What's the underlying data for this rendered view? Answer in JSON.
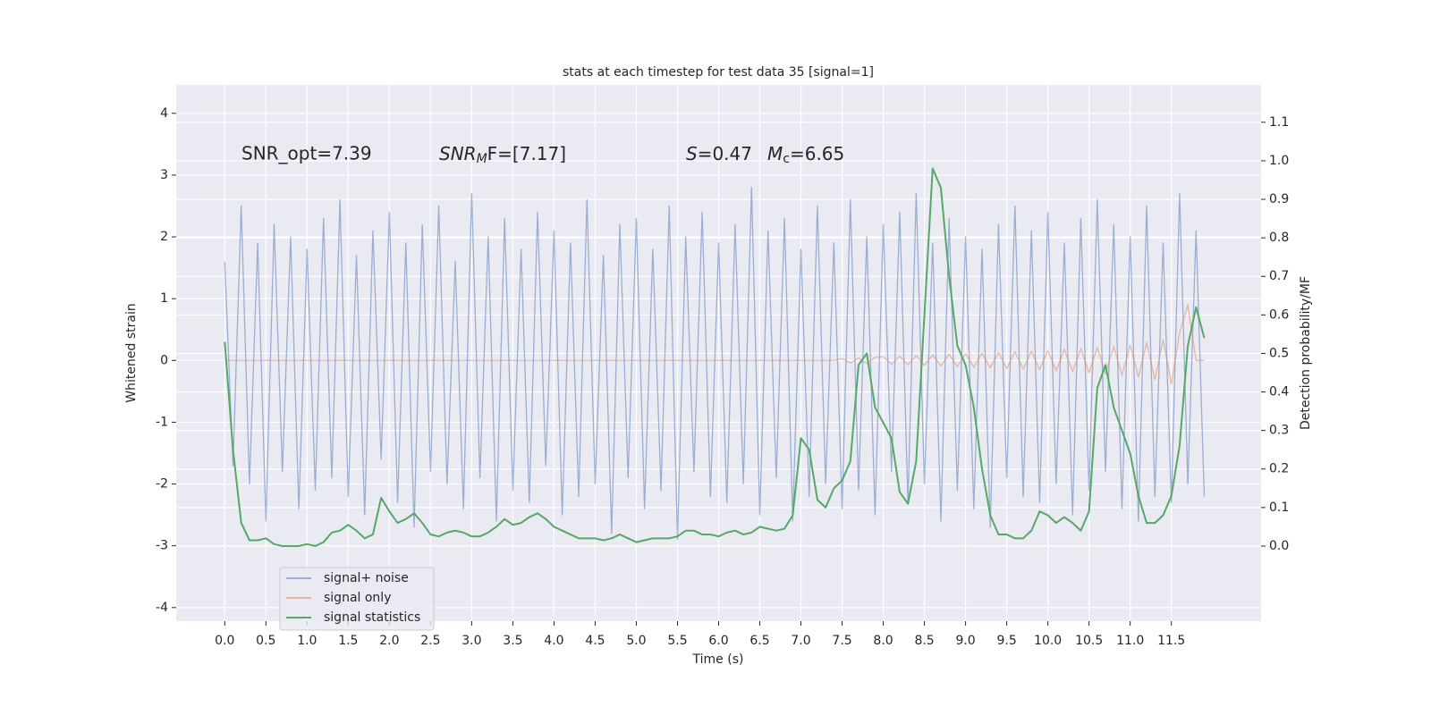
{
  "chart_data": {
    "type": "line",
    "title": "stats at each timestep for test data 35 [signal=1]",
    "xlabel": "Time (s)",
    "ylabel": "Whitened strain",
    "y2label": "Detection probability/MF",
    "annotations": [
      "SNR_opt=7.39",
      [
        "SNR",
        "M",
        "F=[7.17]"
      ],
      [
        "S",
        "=0.47"
      ],
      [
        "M",
        "c",
        "=6.65"
      ]
    ],
    "legend": "lower left",
    "grid": true,
    "xlim": [
      -0.59,
      12.59
    ],
    "ylim": [
      -4.22,
      4.46
    ],
    "y2lim": [
      -0.195,
      1.197
    ],
    "xticks": [
      {
        "value": 0,
        "label": "0.0"
      },
      0.5,
      {
        "value": 1,
        "label": "1.0"
      },
      1.5,
      {
        "value": 2,
        "label": "2.0"
      },
      2.5,
      {
        "value": 3,
        "label": "3.0"
      },
      3.5,
      {
        "value": 4,
        "label": "4.0"
      },
      4.5,
      {
        "value": 5,
        "label": "5.0"
      },
      5.5,
      {
        "value": 6,
        "label": "6.0"
      },
      6.5,
      {
        "value": 7,
        "label": "7.0"
      },
      7.5,
      {
        "value": 8,
        "label": "8.0"
      },
      8.5,
      {
        "value": 9,
        "label": "9.0"
      },
      9.5,
      {
        "value": 10,
        "label": "10.0"
      },
      10.5,
      {
        "value": 11,
        "label": "11.0"
      },
      11.5
    ],
    "yticks": [
      -4,
      -3,
      -2,
      -1,
      0,
      1,
      2,
      3,
      4
    ],
    "y2ticks": [
      {
        "value": 0,
        "label": "0.0"
      },
      0.1,
      0.2,
      0.3,
      0.4,
      0.5,
      0.6,
      0.7,
      0.8,
      0.9,
      {
        "value": 1,
        "label": "1.0"
      },
      1.1
    ],
    "x": [
      0,
      0.1,
      0.2,
      0.3,
      0.4,
      0.5,
      0.6,
      0.7,
      0.8,
      0.9,
      1,
      1.1,
      1.2,
      1.3,
      1.4,
      1.5,
      1.6,
      1.7,
      1.8,
      1.9,
      2,
      2.1,
      2.2,
      2.3,
      2.4,
      2.5,
      2.6,
      2.7,
      2.8,
      2.9,
      3,
      3.1,
      3.2,
      3.3,
      3.4,
      3.5,
      3.6,
      3.7,
      3.8,
      3.9,
      4,
      4.1,
      4.2,
      4.3,
      4.4,
      4.5,
      4.6,
      4.7,
      4.8,
      4.9,
      5,
      5.1,
      5.2,
      5.3,
      5.4,
      5.5,
      5.6,
      5.7,
      5.8,
      5.9,
      6,
      6.1,
      6.2,
      6.3,
      6.4,
      6.5,
      6.6,
      6.7,
      6.8,
      6.9,
      7,
      7.1,
      7.2,
      7.3,
      7.4,
      7.5,
      7.6,
      7.7,
      7.8,
      7.9,
      8,
      8.1,
      8.2,
      8.3,
      8.4,
      8.5,
      8.6,
      8.7,
      8.8,
      8.9,
      9,
      9.1,
      9.2,
      9.3,
      9.4,
      9.5,
      9.6,
      9.7,
      9.8,
      9.9,
      10,
      10.1,
      10.2,
      10.3,
      10.4,
      10.5,
      10.6,
      10.7,
      10.8,
      10.9,
      11,
      11.1,
      11.2,
      11.3,
      11.4,
      11.5,
      11.6,
      11.7,
      11.8,
      11.9
    ],
    "series": [
      {
        "name": "signal+ noise",
        "color": "#4c72b0",
        "alpha": 0.5,
        "values": [
          1.6,
          -1.7,
          2.5,
          -2.0,
          1.9,
          -2.6,
          2.2,
          -1.8,
          2.0,
          -2.4,
          1.8,
          -2.1,
          2.3,
          -1.9,
          2.6,
          -2.2,
          1.7,
          -2.5,
          2.1,
          -1.6,
          2.4,
          -2.3,
          1.9,
          -2.7,
          2.2,
          -1.8,
          2.5,
          -2.0,
          1.6,
          -2.4,
          2.7,
          -1.9,
          2.0,
          -2.6,
          2.3,
          -2.1,
          1.8,
          -2.3,
          2.4,
          -1.7,
          2.1,
          -2.5,
          1.9,
          -2.2,
          2.6,
          -2.0,
          1.7,
          -2.8,
          2.2,
          -1.9,
          2.3,
          -2.4,
          1.8,
          -2.1,
          2.5,
          -2.9,
          2.0,
          -1.8,
          2.4,
          -2.2,
          1.9,
          -2.3,
          2.2,
          -2.0,
          2.8,
          -2.5,
          2.1,
          -1.9,
          2.3,
          -2.6,
          1.8,
          -2.2,
          2.5,
          -2.0,
          1.9,
          -2.4,
          2.6,
          -2.1,
          2.0,
          -2.5,
          2.2,
          -1.8,
          2.4,
          -2.3,
          2.7,
          -2.0,
          1.9,
          -2.6,
          2.3,
          -2.1,
          2.0,
          -2.4,
          1.8,
          -2.7,
          2.2,
          -1.9,
          2.5,
          -2.2,
          2.1,
          -2.3,
          2.4,
          -2.0,
          1.9,
          -2.5,
          2.3,
          -2.1,
          2.6,
          -1.8,
          2.2,
          -2.4,
          2.0,
          -2.6,
          2.5,
          -2.2,
          1.9,
          -2.3,
          2.7,
          -2.0,
          2.1,
          -2.2
        ]
      },
      {
        "name": "signal only",
        "color": "#dd8452",
        "alpha": 0.5,
        "values": [
          0,
          0,
          0,
          0,
          0,
          0,
          0,
          0,
          0,
          0,
          0,
          0,
          0,
          0,
          0,
          0,
          0,
          0,
          0,
          0,
          0,
          0,
          0,
          0,
          0,
          0,
          0,
          0,
          0,
          0,
          0,
          0,
          0,
          0,
          0,
          0,
          0,
          0,
          0,
          0,
          0,
          0,
          0,
          0,
          0,
          0,
          0,
          0,
          0,
          0,
          0,
          0,
          0,
          0,
          0,
          0,
          0,
          0,
          0,
          0,
          0,
          0,
          0,
          0,
          0,
          0,
          0,
          0,
          0,
          0,
          0,
          0,
          0,
          0,
          0,
          0.03,
          -0.04,
          0.04,
          -0.05,
          0.05,
          0.06,
          -0.06,
          0.07,
          -0.07,
          0.08,
          -0.08,
          0.09,
          -0.09,
          0.1,
          -0.1,
          0.11,
          -0.11,
          0.12,
          -0.12,
          0.13,
          -0.13,
          0.14,
          -0.14,
          0.15,
          -0.15,
          0.16,
          -0.17,
          0.18,
          -0.18,
          0.19,
          -0.2,
          0.21,
          -0.22,
          0.23,
          -0.24,
          0.25,
          -0.27,
          0.29,
          -0.31,
          0.34,
          -0.38,
          0.45,
          0.9,
          0,
          0
        ]
      },
      {
        "name": "signal statistics",
        "color": "#55a868",
        "axis": "y2",
        "values": [
          0.53,
          0.25,
          0.06,
          0.015,
          0.015,
          0.02,
          0.005,
          0,
          0,
          0,
          0.005,
          0,
          0.01,
          0.035,
          0.04,
          0.055,
          0.04,
          0.02,
          0.03,
          0.125,
          0.09,
          0.06,
          0.07,
          0.085,
          0.06,
          0.03,
          0.025,
          0.035,
          0.04,
          0.035,
          0.025,
          0.025,
          0.035,
          0.05,
          0.07,
          0.055,
          0.06,
          0.075,
          0.085,
          0.07,
          0.05,
          0.04,
          0.03,
          0.02,
          0.02,
          0.02,
          0.015,
          0.02,
          0.03,
          0.02,
          0.01,
          0.015,
          0.02,
          0.02,
          0.02,
          0.025,
          0.04,
          0.04,
          0.03,
          0.03,
          0.025,
          0.035,
          0.04,
          0.03,
          0.035,
          0.05,
          0.045,
          0.04,
          0.045,
          0.08,
          0.28,
          0.25,
          0.12,
          0.1,
          0.15,
          0.17,
          0.22,
          0.47,
          0.5,
          0.36,
          0.32,
          0.28,
          0.14,
          0.11,
          0.22,
          0.6,
          0.98,
          0.93,
          0.7,
          0.52,
          0.47,
          0.36,
          0.2,
          0.08,
          0.03,
          0.03,
          0.02,
          0.02,
          0.04,
          0.09,
          0.08,
          0.06,
          0.075,
          0.06,
          0.04,
          0.09,
          0.41,
          0.47,
          0.36,
          0.3,
          0.24,
          0.13,
          0.06,
          0.06,
          0.08,
          0.13,
          0.26,
          0.52,
          0.62,
          0.54
        ]
      }
    ]
  }
}
